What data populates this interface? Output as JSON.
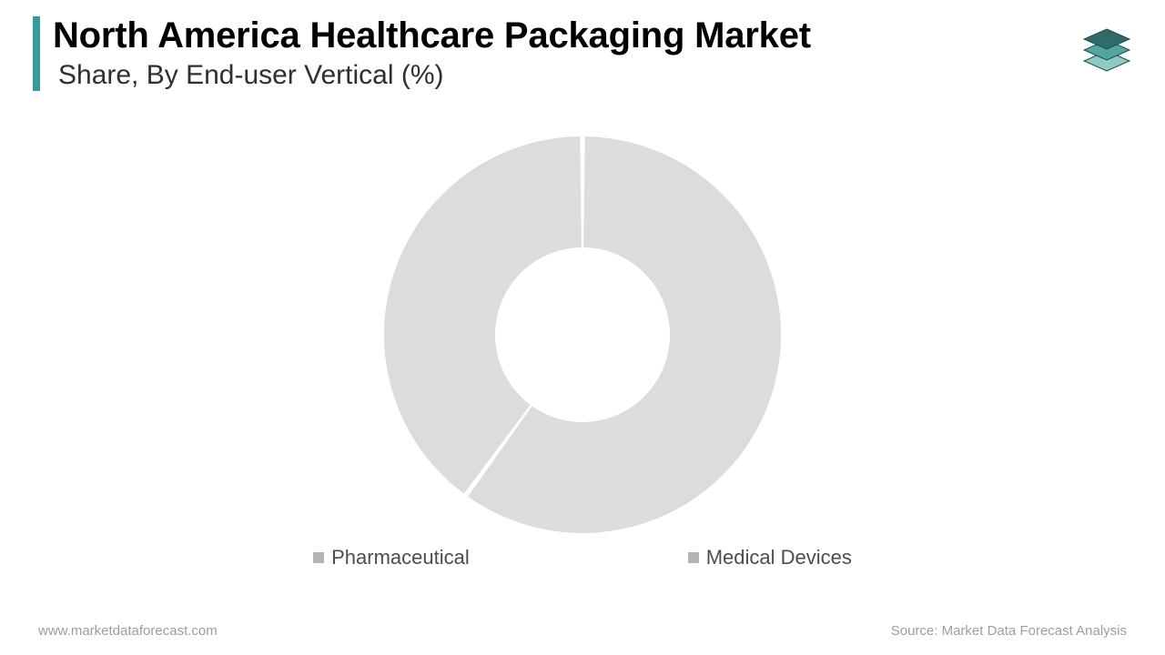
{
  "header": {
    "title": "North America Healthcare Packaging Market",
    "subtitle": "Share, By End-user Vertical (%)",
    "accent_color": "#379b99"
  },
  "chart": {
    "type": "donut",
    "outer_radius": 218,
    "inner_radius": 96,
    "gap_deg": 1.4,
    "background_color": "#ffffff",
    "series": [
      {
        "label": "Pharmaceutical",
        "value": 60,
        "color": "#dcdcdc"
      },
      {
        "label": "Medical Devices",
        "value": 40,
        "color": "#dcdcdc"
      }
    ],
    "legend": {
      "swatch_color": "#b5b5b5",
      "text_color": "#4d4d4d",
      "fontsize": 22
    }
  },
  "logo": {
    "layer_colors": [
      "#2f6b69",
      "#4fa6a3",
      "#8fcac7"
    ],
    "stroke": "#1f4b4a"
  },
  "footer": {
    "left": "www.marketdataforecast.com",
    "right": "Source: Market Data Forecast Analysis",
    "color": "#9e9e9e",
    "fontsize": 15
  }
}
